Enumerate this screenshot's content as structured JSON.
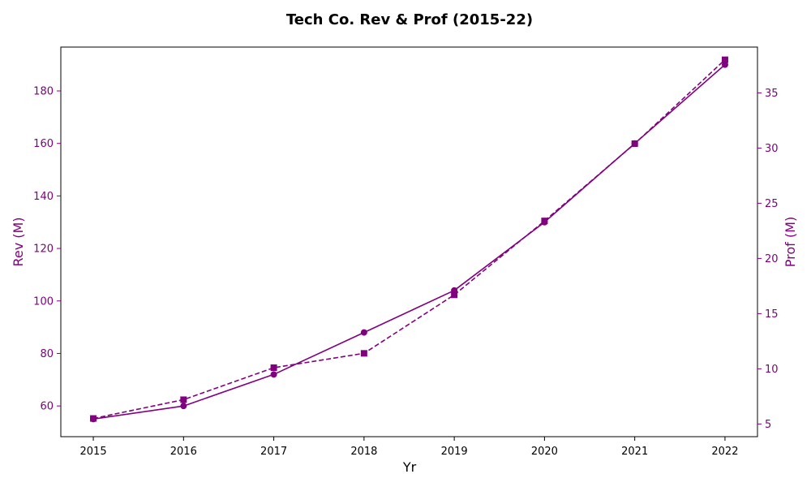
{
  "chart_data": {
    "type": "line",
    "title": "Tech Co. Rev & Prof (2015-22)",
    "xlabel": "Yr",
    "ylabel_left": "Rev (M)",
    "ylabel_right": "Prof (M)",
    "x": [
      2015,
      2016,
      2017,
      2018,
      2019,
      2020,
      2021,
      2022
    ],
    "xlim": [
      2014.64,
      2022.36
    ],
    "ylim_left": [
      48.3,
      196.7
    ],
    "ylim_right": [
      3.85,
      39.15
    ],
    "yticks_left": [
      60,
      80,
      100,
      120,
      140,
      160,
      180
    ],
    "yticks_right": [
      5,
      10,
      15,
      20,
      25,
      30,
      35
    ],
    "axis_color": "#800080",
    "grid": false,
    "series": [
      {
        "axis": "left",
        "marker": "circle",
        "line_style": "solid",
        "color": "#800080",
        "values": [
          55,
          60,
          72,
          88,
          104,
          130,
          160,
          190
        ]
      },
      {
        "axis": "right",
        "marker": "square",
        "line_style": "dashed",
        "color": "#800080",
        "values": [
          5.5,
          7.2,
          10.1,
          11.4,
          16.7,
          23.4,
          30.4,
          38
        ]
      }
    ]
  }
}
